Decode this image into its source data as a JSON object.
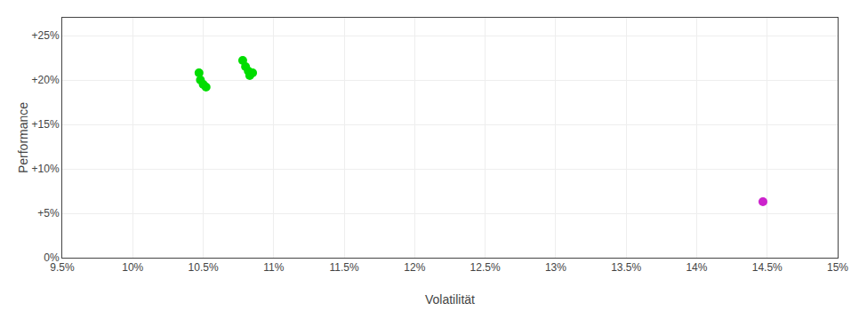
{
  "chart_data": {
    "type": "scatter",
    "xlabel": "Volatilität",
    "ylabel": "Performance",
    "xlim": [
      0.095,
      0.15
    ],
    "ylim": [
      0.0,
      0.27
    ],
    "xticks": [
      {
        "value": 0.095,
        "label": "9.5%"
      },
      {
        "value": 0.1,
        "label": "10%"
      },
      {
        "value": 0.105,
        "label": "10.5%"
      },
      {
        "value": 0.11,
        "label": "11%"
      },
      {
        "value": 0.115,
        "label": "11.5%"
      },
      {
        "value": 0.12,
        "label": "12%"
      },
      {
        "value": 0.125,
        "label": "12.5%"
      },
      {
        "value": 0.13,
        "label": "13%"
      },
      {
        "value": 0.135,
        "label": "13.5%"
      },
      {
        "value": 0.14,
        "label": "14%"
      },
      {
        "value": 0.145,
        "label": "14.5%"
      },
      {
        "value": 0.15,
        "label": "15%"
      }
    ],
    "yticks": [
      {
        "value": 0.0,
        "label": "0%"
      },
      {
        "value": 0.05,
        "label": "+5%"
      },
      {
        "value": 0.1,
        "label": "+10%"
      },
      {
        "value": 0.15,
        "label": "+15%"
      },
      {
        "value": 0.2,
        "label": "+20%"
      },
      {
        "value": 0.25,
        "label": "+25%"
      }
    ],
    "grid": true,
    "series": [
      {
        "color": "#00dd00",
        "x": [
          0.1047,
          0.1048,
          0.105,
          0.1052,
          0.1078,
          0.108,
          0.1082,
          0.1085,
          0.1083
        ],
        "values": [
          0.208,
          0.2,
          0.195,
          0.192,
          0.222,
          0.215,
          0.21,
          0.208,
          0.205
        ]
      },
      {
        "color": "#cc22cc",
        "x": [
          0.1447
        ],
        "values": [
          0.063
        ]
      }
    ]
  }
}
